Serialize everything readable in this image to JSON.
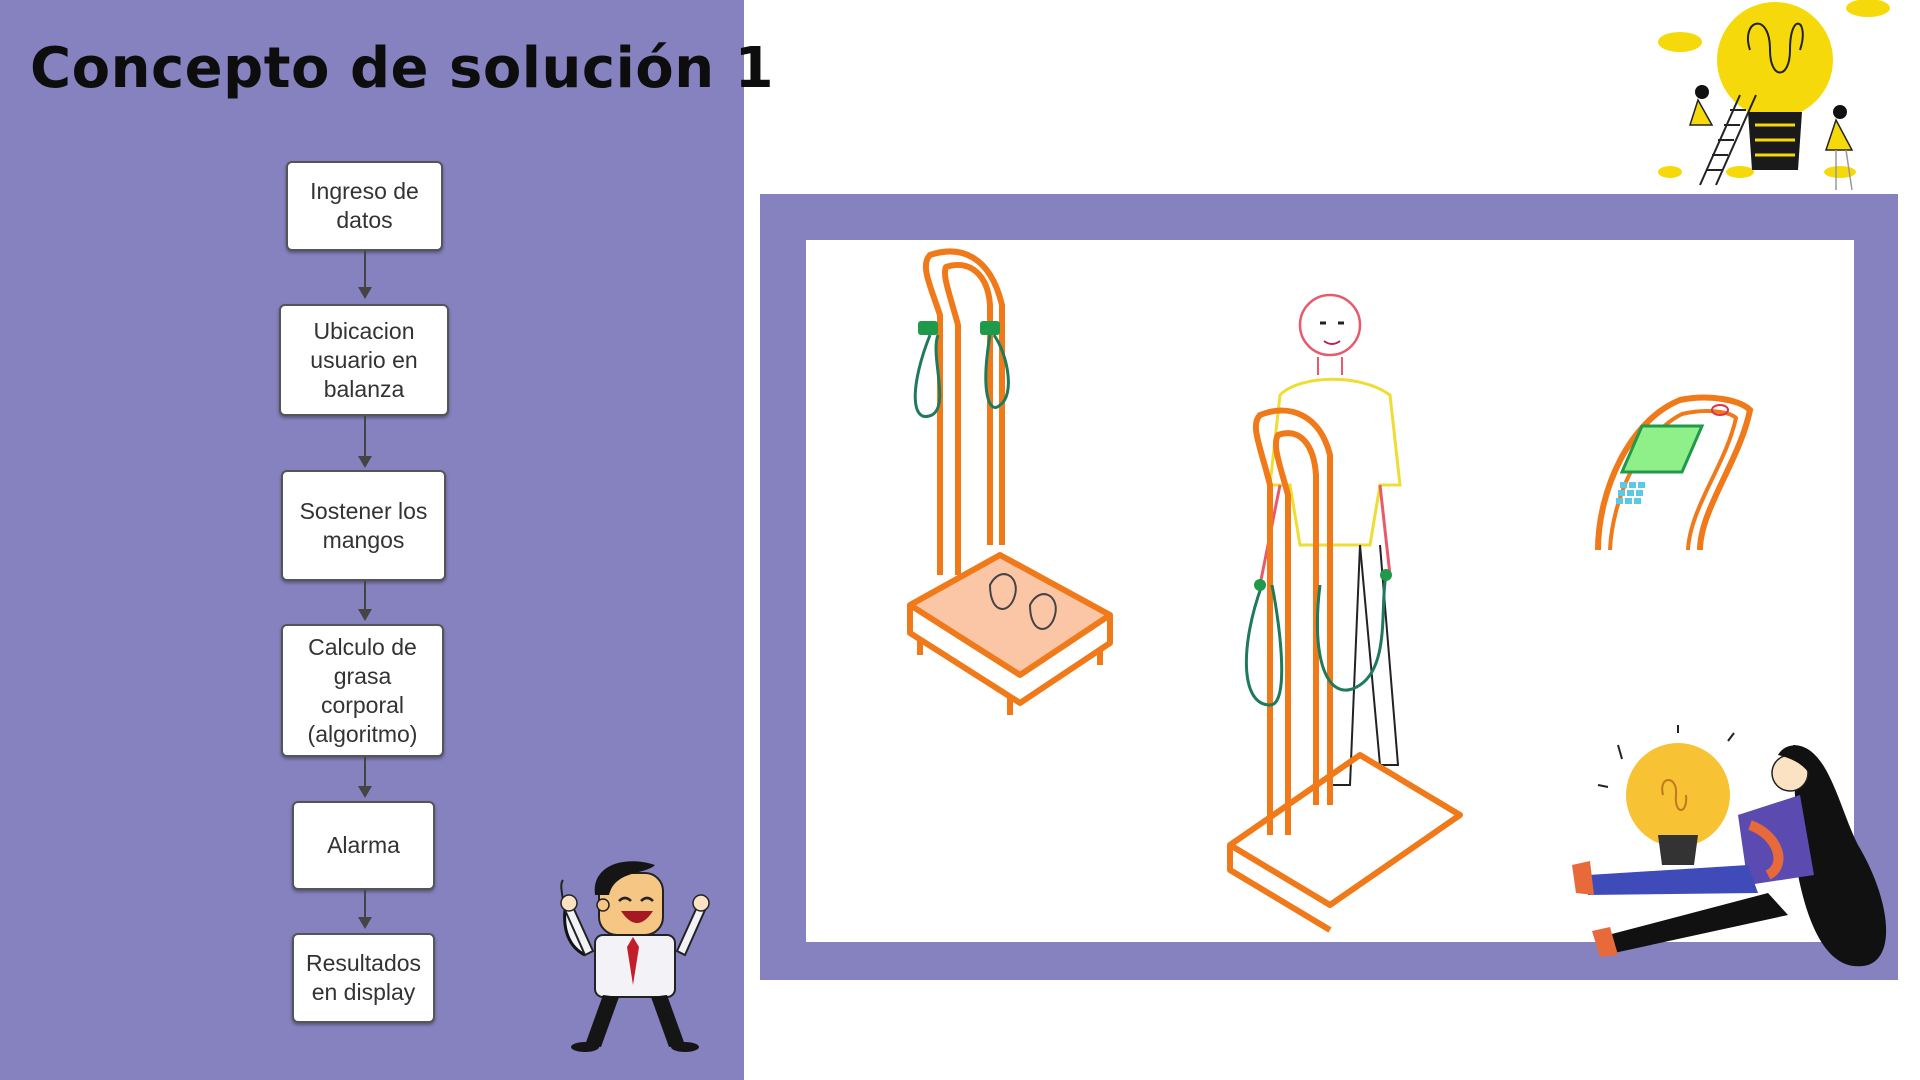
{
  "slide": {
    "title": "Concepto de solución 1",
    "colors": {
      "panel": "#8682bf",
      "accent_orange": "#f07a1a",
      "accent_green": "#1e7a5a",
      "bulb_yellow": "#f5d90a"
    }
  },
  "flowchart": {
    "steps": [
      {
        "label": "Ingreso de\ndatos"
      },
      {
        "label": "Ubicacion\nusuario en\nbalanza"
      },
      {
        "label": "Sostener los\nmangos"
      },
      {
        "label": "Calculo de\ngrasa\ncorporal\n(algoritmo)"
      },
      {
        "label": "Alarma"
      },
      {
        "label": "Resultados\nen display"
      }
    ]
  },
  "illustrations": [
    {
      "name": "body-fat-scale-illustration"
    },
    {
      "name": "person-on-scale-illustration"
    },
    {
      "name": "display-console-illustration"
    },
    {
      "name": "cartoon-businessman-illustration"
    },
    {
      "name": "woman-holding-lightbulb-illustration"
    },
    {
      "name": "lightbulb-teamwork-illustration"
    }
  ]
}
